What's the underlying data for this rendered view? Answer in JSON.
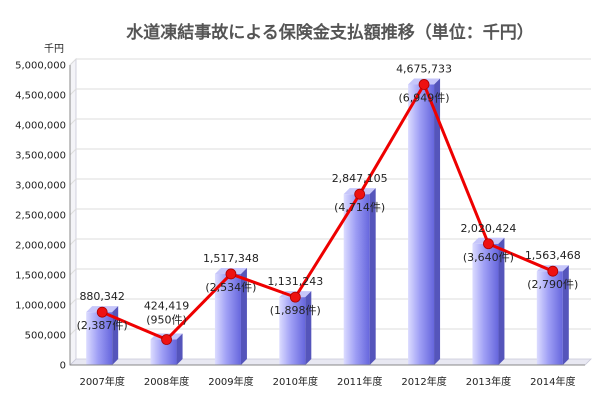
{
  "chart_data": {
    "type": "bar",
    "title": "水道凍結事故による保険金支払額推移（単位：千円）",
    "y_unit": "千円",
    "ylim": [
      0,
      5000000
    ],
    "y_ticks": [
      "0",
      "500,000",
      "1,000,000",
      "1,500,000",
      "2,000,000",
      "2,500,000",
      "3,000,000",
      "3,500,000",
      "4,000,000",
      "4,500,000",
      "5,000,000"
    ],
    "categories": [
      "2007年度",
      "2008年度",
      "2009年度",
      "2010年度",
      "2011年度",
      "2012年度",
      "2013年度",
      "2014年度"
    ],
    "series": [
      {
        "kind": "bar",
        "values": [
          880342,
          424419,
          1517348,
          1131243,
          2847105,
          4675733,
          2020424,
          1563468
        ]
      },
      {
        "kind": "line",
        "values": [
          880342,
          424419,
          1517348,
          1131243,
          2847105,
          4675733,
          2020424,
          1563468
        ]
      }
    ],
    "value_labels": [
      "880,342",
      "424,419",
      "1,517,348",
      "1,131,243",
      "2,847,105",
      "4,675,733",
      "2,020,424",
      "1,563,468"
    ],
    "count_labels": [
      "(2,387件)",
      "(950件)",
      "(2,534件)",
      "(1,898件)",
      "(4,714件)",
      "(6,949件)",
      "(3,640件)",
      "(2,790件)"
    ],
    "grid": true,
    "legend": "none",
    "colors": {
      "bar_light": "#dcdcff",
      "bar_mid": "#9f9ff5",
      "bar_dark": "#6666dd",
      "line": "#ee0000",
      "marker": "#ee1111",
      "grid": "#dddddd",
      "floor": "#e8e8f2",
      "title": "#555555"
    }
  }
}
